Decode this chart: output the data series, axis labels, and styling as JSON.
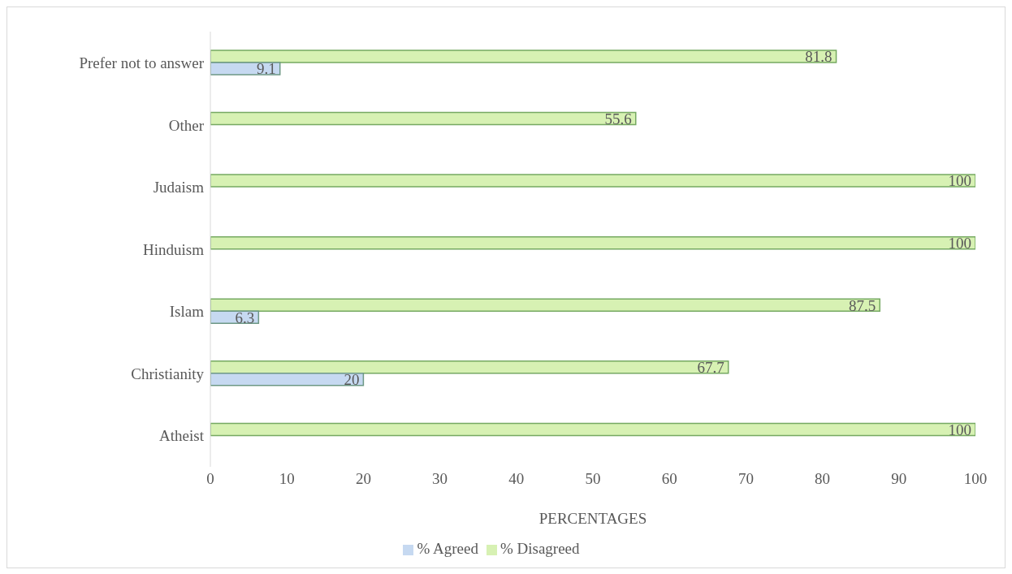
{
  "chart_data": {
    "type": "bar",
    "orientation": "horizontal",
    "xlabel": "PERCENTAGES",
    "categories": [
      "Prefer not to answer",
      "Other",
      "Judaism",
      "Hinduism",
      "Islam",
      "Christianity",
      "Atheist"
    ],
    "series": [
      {
        "name": "% Disagreed",
        "color": "#d7f1b3",
        "values": [
          81.8,
          55.6,
          100,
          100,
          87.5,
          67.7,
          100
        ]
      },
      {
        "name": "% Agreed",
        "color": "#c6d9f1",
        "values": [
          9.1,
          null,
          null,
          null,
          6.3,
          20,
          null
        ]
      }
    ],
    "xlim": [
      0,
      100
    ],
    "xticks": [
      0,
      10,
      20,
      30,
      40,
      50,
      60,
      70,
      80,
      90,
      100
    ],
    "grid": false,
    "legend": "bottom",
    "data_labels": true
  }
}
